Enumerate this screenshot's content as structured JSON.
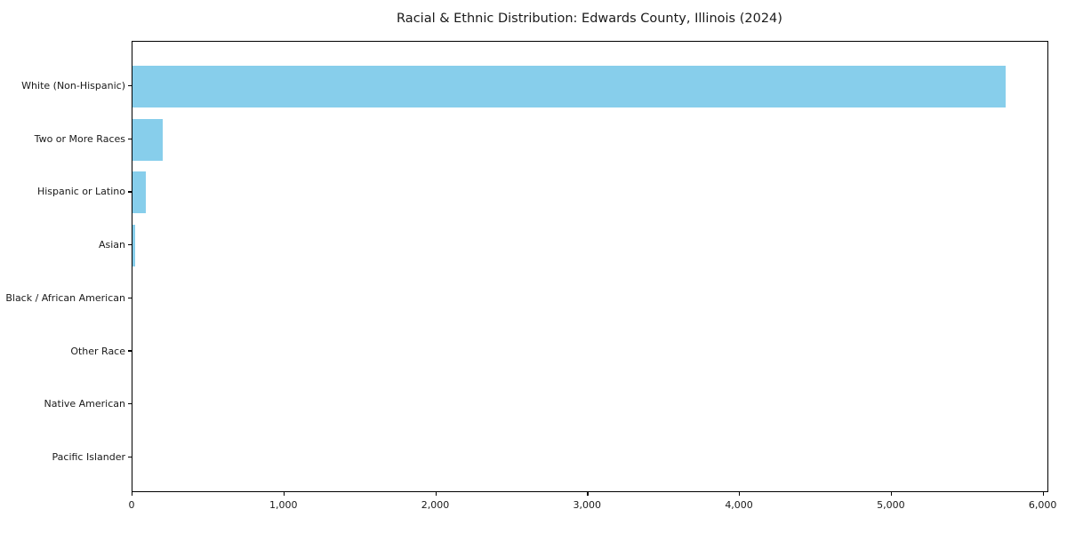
{
  "title": "Racial & Ethnic Distribution: Edwards County, Illinois (2024)",
  "chart_data": {
    "type": "bar",
    "orientation": "horizontal",
    "title": "Racial & Ethnic Distribution: Edwards County, Illinois (2024)",
    "categories": [
      "White (Non-Hispanic)",
      "Two or More Races",
      "Hispanic or Latino",
      "Asian",
      "Black / African American",
      "Other Race",
      "Native American",
      "Pacific Islander"
    ],
    "values": [
      5750,
      200,
      90,
      15,
      0,
      0,
      0,
      0
    ],
    "xlabel": "",
    "ylabel": "",
    "xlim": [
      0,
      6037.5
    ],
    "x_ticks": [
      0,
      1000,
      2000,
      3000,
      4000,
      5000,
      6000
    ],
    "x_tick_labels": [
      "0",
      "1,000",
      "2,000",
      "3,000",
      "4,000",
      "5,000",
      "6,000"
    ],
    "bar_color": "#87CEEB",
    "frame_color": "#000000",
    "text_color": "#1a1a1a",
    "grid": false,
    "legend": null,
    "sorted": "descending"
  }
}
